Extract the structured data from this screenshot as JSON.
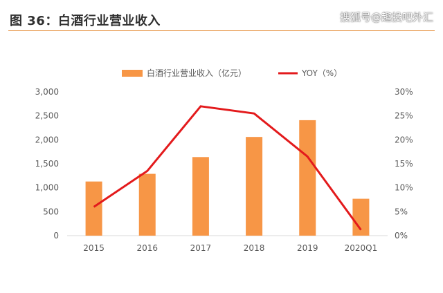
{
  "header": {
    "title": "图 36：白酒行业营业收入",
    "source": "搜狐号@趣投吧外汇"
  },
  "colors": {
    "bar": "#f79646",
    "line": "#e31a1c",
    "axis": "#d9d9d9",
    "title_rule": "#e58a35"
  },
  "chart_data": {
    "type": "bar",
    "categories": [
      "2015",
      "2016",
      "2017",
      "2018",
      "2019",
      "2020Q1"
    ],
    "series": [
      {
        "name": "白酒行业营业收入（亿元）",
        "type": "bar",
        "axis": "left",
        "values": [
          1130,
          1290,
          1640,
          2060,
          2410,
          770
        ]
      },
      {
        "name": "YOY（%）",
        "type": "line",
        "axis": "right",
        "values": [
          0.06,
          0.135,
          0.27,
          0.255,
          0.165,
          0.012
        ]
      }
    ],
    "y_left": {
      "min": 0,
      "max": 3000,
      "ticks": [
        "0",
        "500",
        "1,000",
        "1,500",
        "2,000",
        "2,500",
        "3,000"
      ]
    },
    "y_right": {
      "min": 0,
      "max": 0.3,
      "ticks": [
        "0%",
        "5%",
        "10%",
        "15%",
        "20%",
        "25%",
        "30%"
      ]
    },
    "legend": "top",
    "grid": false
  }
}
